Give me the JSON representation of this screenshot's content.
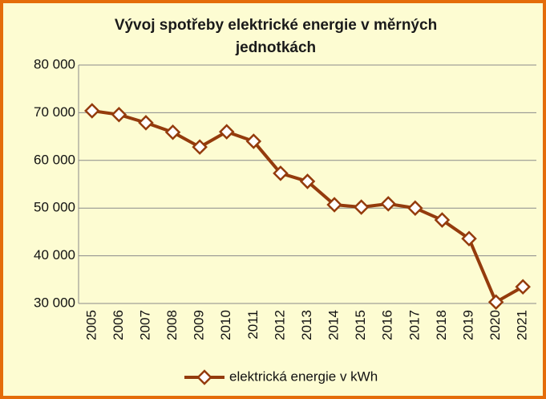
{
  "chart_data": {
    "type": "line",
    "title": "Vývoj spotřeby elektrické energie v měrných jednotkách",
    "categories": [
      "2005",
      "2006",
      "2007",
      "2008",
      "2009",
      "2010",
      "2011",
      "2012",
      "2013",
      "2014",
      "2015",
      "2016",
      "2017",
      "2018",
      "2019",
      "2020",
      "2021"
    ],
    "series": [
      {
        "name": "elektrická energie v kWh",
        "color": "#943b0c",
        "values": [
          70400,
          69600,
          67900,
          65900,
          62800,
          66000,
          64000,
          57300,
          55600,
          50700,
          50200,
          50900,
          50000,
          47500,
          43600,
          30300,
          33500
        ]
      }
    ],
    "ylim": [
      30000,
      80000
    ],
    "yticks": [
      {
        "value": 30000,
        "label": "30 000"
      },
      {
        "value": 40000,
        "label": "40 000"
      },
      {
        "value": 50000,
        "label": "50 000"
      },
      {
        "value": 60000,
        "label": "60 000"
      },
      {
        "value": 70000,
        "label": "70 000"
      },
      {
        "value": 80000,
        "label": "80 000"
      }
    ],
    "grid": true,
    "legend": "bottom"
  }
}
